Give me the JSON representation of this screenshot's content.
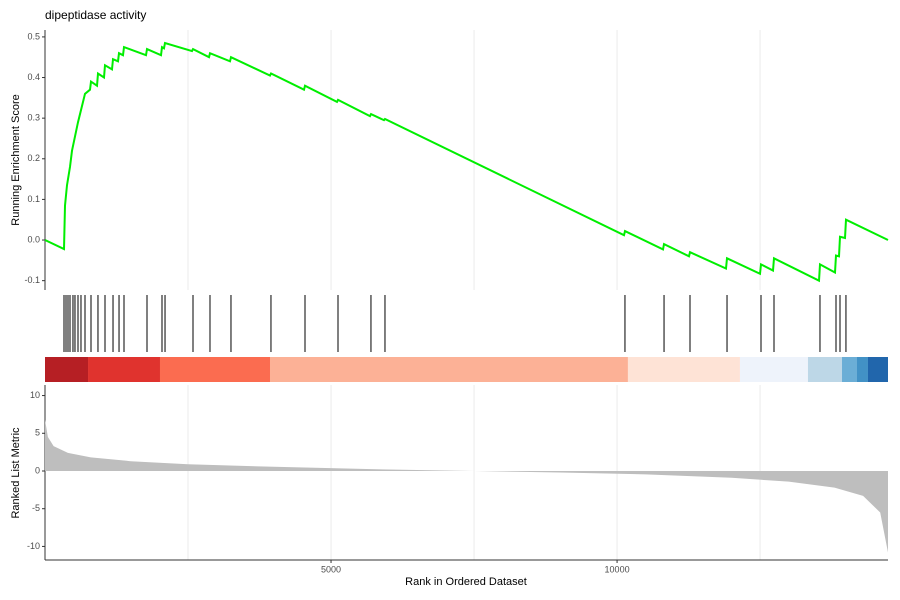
{
  "chart_data": {
    "type": "gsea",
    "title": "dipeptidase activity",
    "x_label": "Rank in Ordered Dataset",
    "xlim": [
      0,
      14736
    ],
    "xticks": [
      5000,
      10000
    ],
    "xgrid": [
      2500,
      5000,
      7500,
      10000,
      12500
    ],
    "es": {
      "y_label": "Running Enrichment Score",
      "color": "#00ee00",
      "ylim": [
        -0.123,
        0.517
      ],
      "yticks": [
        -0.1,
        {
          "value": 0,
          "label": "0.0"
        },
        0.1,
        0.2,
        0.3,
        0.4,
        0.5
      ],
      "x": [
        0,
        332,
        350,
        385,
        437,
        472,
        524,
        577,
        647,
        699,
        787,
        804,
        909,
        926,
        1031,
        1049,
        1171,
        1189,
        1276,
        1294,
        1363,
        1381,
        1765,
        1783,
        2028,
        2045,
        2080,
        2098,
        2570,
        2587,
        2867,
        2884,
        3234,
        3251,
        3933,
        3950,
        4527,
        4545,
        5104,
        5122,
        5681,
        5698,
        5926,
        5943,
        10121,
        10138,
        10803,
        10821,
        11258,
        11275,
        11904,
        11922,
        12498,
        12516,
        12725,
        12743,
        13530,
        13547,
        13810,
        13827,
        13879,
        13897,
        13984,
        14001,
        14736
      ],
      "values": [
        0,
        -0.022,
        0.085,
        0.135,
        0.18,
        0.22,
        0.255,
        0.29,
        0.33,
        0.36,
        0.37,
        0.39,
        0.38,
        0.41,
        0.4,
        0.43,
        0.42,
        0.445,
        0.44,
        0.46,
        0.455,
        0.475,
        0.455,
        0.47,
        0.455,
        0.475,
        0.472,
        0.485,
        0.465,
        0.47,
        0.45,
        0.46,
        0.44,
        0.45,
        0.405,
        0.41,
        0.37,
        0.38,
        0.34,
        0.345,
        0.305,
        0.31,
        0.295,
        0.298,
        0.012,
        0.022,
        -0.023,
        -0.01,
        -0.04,
        -0.03,
        -0.07,
        -0.045,
        -0.083,
        -0.06,
        -0.075,
        -0.045,
        -0.1,
        -0.06,
        -0.08,
        -0.038,
        -0.04,
        0.008,
        0.005,
        0.05,
        0
      ]
    },
    "hits": [
      332,
      367,
      402,
      437,
      489,
      524,
      577,
      629,
      699,
      804,
      926,
      1049,
      1189,
      1294,
      1381,
      1783,
      2045,
      2098,
      2587,
      2884,
      3251,
      3950,
      4545,
      5122,
      5698,
      5943,
      10138,
      10821,
      11275,
      11922,
      12516,
      12743,
      13547,
      13827,
      13897,
      14001
    ],
    "band": {
      "breaks": [
        0,
        752,
        2010,
        3933,
        10190,
        12148,
        13337,
        13932,
        14194,
        14386,
        14736
      ],
      "colors": [
        "#b61f24",
        "#e0332e",
        "#fb6c50",
        "#fcb196",
        "#fee3d6",
        "#eef3fb",
        "#bdd7e7",
        "#6baed6",
        "#4292c6",
        "#2166ac"
      ]
    },
    "metric": {
      "y_label": "Ranked List Metric",
      "color": "#bebebe",
      "ylim": [
        -11.8,
        11.4
      ],
      "yticks": [
        -10,
        -5,
        0,
        5,
        10
      ],
      "x": [
        0,
        50,
        150,
        400,
        800,
        1500,
        2500,
        4000,
        6000,
        7500,
        9000,
        10500,
        12000,
        13000,
        13800,
        14300,
        14600,
        14736
      ],
      "values": [
        6.8,
        4.5,
        3.3,
        2.4,
        1.8,
        1.3,
        0.9,
        0.55,
        0.2,
        0,
        -0.2,
        -0.45,
        -0.9,
        -1.4,
        -2.2,
        -3.3,
        -5.5,
        -10.8
      ]
    }
  }
}
